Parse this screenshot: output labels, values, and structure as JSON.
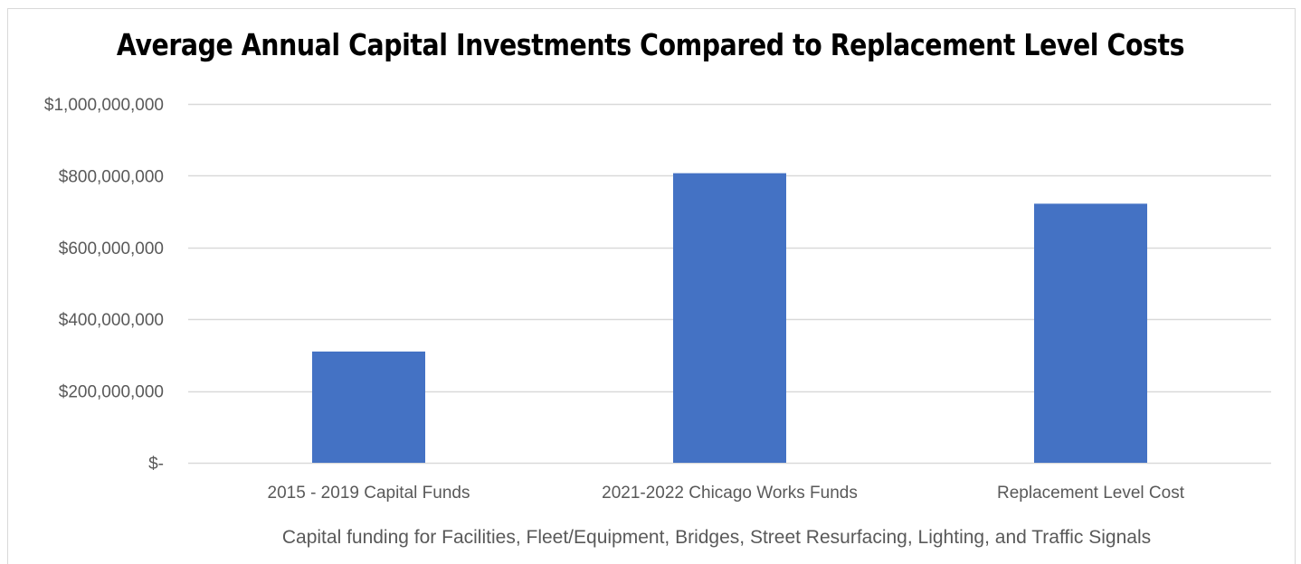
{
  "chart_data": {
    "type": "bar",
    "title": "Average Annual Capital Investments Compared to Replacement Level Costs",
    "xlabel": "Capital funding for Facilities, Fleet/Equipment, Bridges, Street Resurfacing, Lighting, and Traffic Signals",
    "ylabel": "",
    "categories": [
      "2015 - 2019 Capital Funds",
      "2021-2022 Chicago Works Funds",
      "Replacement Level Cost"
    ],
    "values": [
      310000000,
      807000000,
      722000000
    ],
    "ylim": [
      0,
      1000000000
    ],
    "y_ticks": [
      0,
      200000000,
      400000000,
      600000000,
      800000000,
      1000000000
    ],
    "y_tick_labels": [
      "$-",
      "$200,000,000",
      "$400,000,000",
      "$600,000,000",
      "$800,000,000",
      "$1,000,000,000"
    ],
    "grid": true,
    "legend": "none",
    "bar_color": "#4472C4",
    "grid_color": "#D9D9D9"
  }
}
